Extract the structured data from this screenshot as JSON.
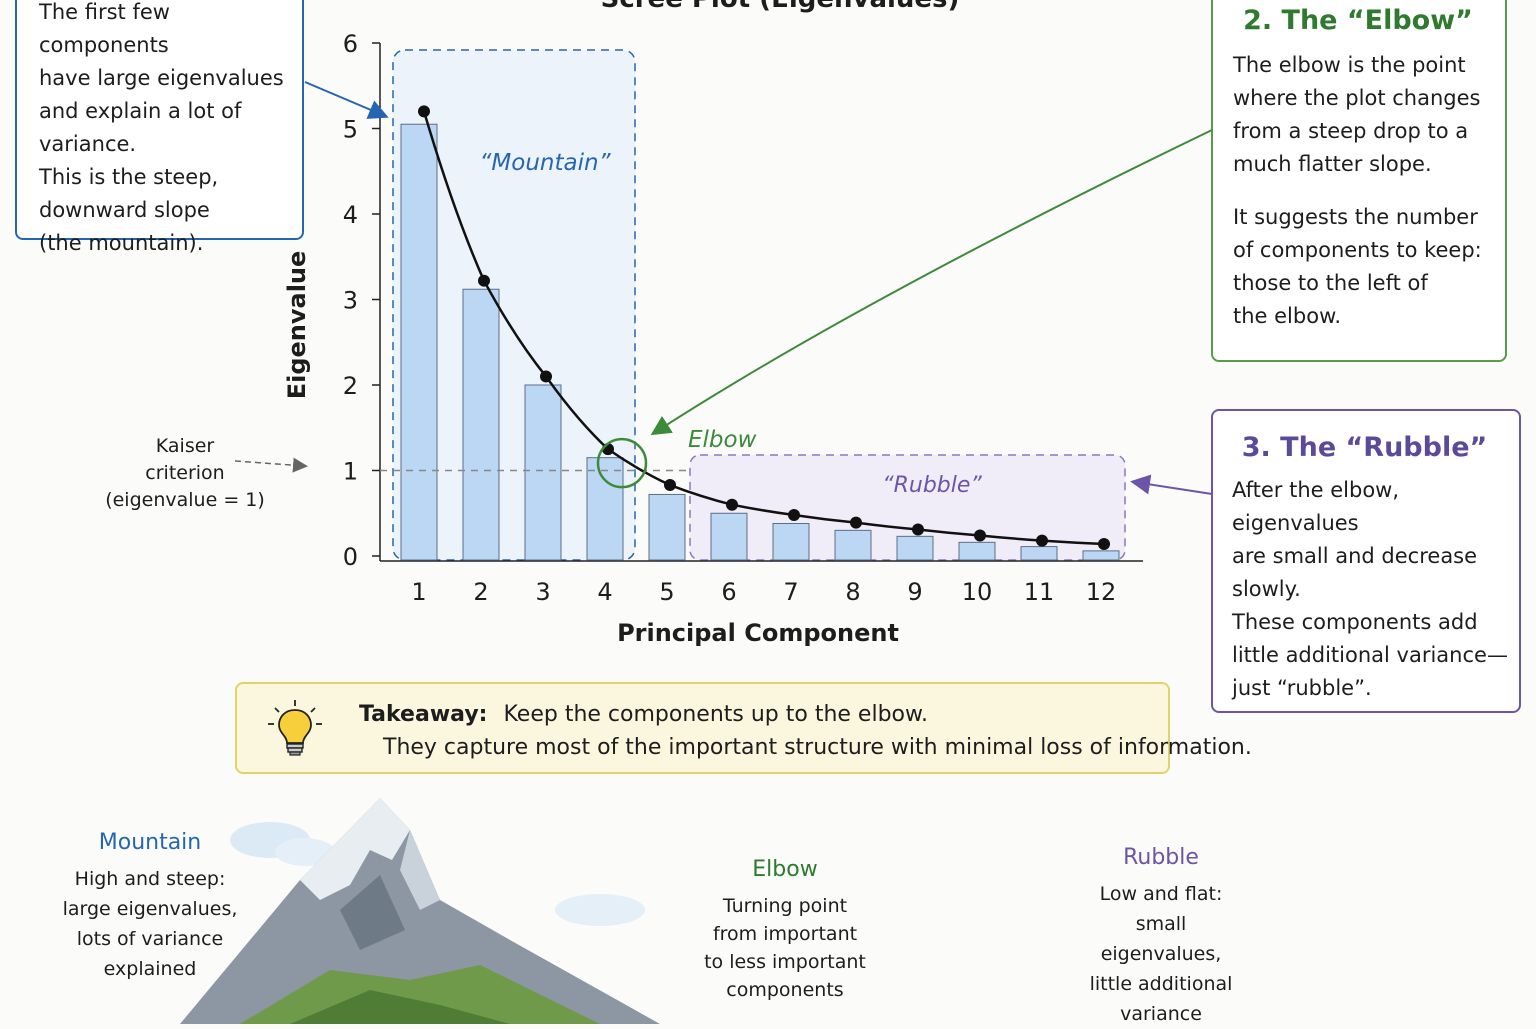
{
  "chart_data": {
    "type": "bar",
    "title": "Scree Plot (Eigenvalues)",
    "xlabel": "Principal Component",
    "ylabel": "Eigenvalue",
    "categories": [
      "1",
      "2",
      "3",
      "4",
      "5",
      "6",
      "7",
      "8",
      "9",
      "10",
      "11",
      "12"
    ],
    "series": [
      {
        "values": [
          5.05,
          3.12,
          2.0,
          1.15,
          0.72,
          0.5,
          0.38,
          0.3,
          0.23,
          0.16,
          0.11,
          0.06
        ]
      }
    ],
    "line_values": [
      5.2,
      3.22,
      2.1,
      1.25,
      0.83,
      0.6,
      0.48,
      0.39,
      0.31,
      0.24,
      0.18,
      0.14
    ],
    "yticks": [
      0,
      1,
      2,
      3,
      4,
      5,
      6
    ],
    "ylim": [
      0,
      6
    ],
    "reference_line": {
      "y": 1
    },
    "elbow_component": 4,
    "mountain_label": "“Mountain”",
    "rubble_label": "“Rubble”",
    "elbow_label": "Elbow",
    "kaiser_label": [
      "Kaiser",
      "criterion",
      "(eigenvalue = 1)"
    ],
    "colors": {
      "bar": "#bcd7f3",
      "mountain": "#2566b0",
      "elbow": "#3d8a3a",
      "rubble": "#6b55a8"
    }
  },
  "callouts": {
    "mountain": [
      "The first few components",
      "have large eigenvalues",
      "and explain a lot of",
      "variance.",
      "This is the steep,",
      "downward slope",
      "(the mountain)."
    ],
    "elbow": {
      "title": "2. The “Elbow”",
      "lines": [
        "The elbow is the point",
        "where the plot changes",
        "from a steep drop to a",
        "much flatter slope."
      ],
      "lines2": [
        "It suggests the number",
        "of components to keep:",
        "those to the left of",
        "the elbow."
      ]
    },
    "rubble": {
      "title": "3. The “Rubble”",
      "lines": [
        "After the elbow, eigenvalues",
        "are small and decrease",
        "slowly.",
        "These components add",
        "little additional variance—",
        "just “rubble”."
      ]
    }
  },
  "takeaway": {
    "label": "Takeaway:",
    "line1": "Keep the components up to the elbow.",
    "line2": "They capture most of the important structure with minimal loss of information."
  },
  "legend": {
    "mountain": {
      "title": "Mountain",
      "lines": [
        "High and steep:",
        "large eigenvalues,",
        "lots of variance",
        "explained"
      ]
    },
    "elbow": {
      "title": "Elbow",
      "lines": [
        "Turning point",
        "from important",
        "to less important",
        "components"
      ]
    },
    "rubble": {
      "title": "Rubble",
      "lines": [
        "Low and flat:",
        "small eigenvalues,",
        "little additional",
        "variance"
      ]
    }
  }
}
